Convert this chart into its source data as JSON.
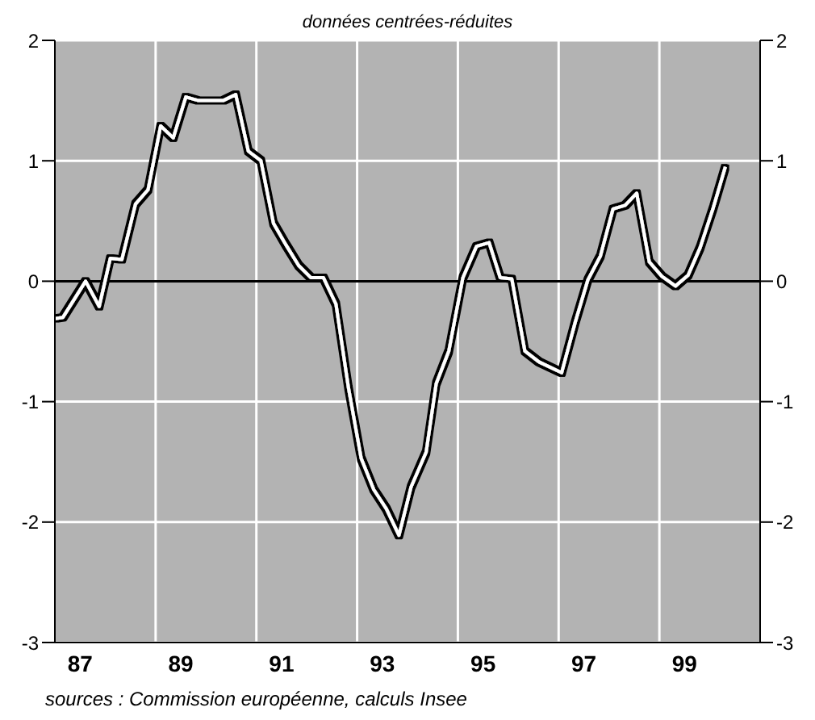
{
  "chart_data": {
    "type": "line",
    "subtitle": "données centrées-réduites",
    "x": [
      86.5,
      86.66,
      87.11,
      87.38,
      87.6,
      87.83,
      88.1,
      88.35,
      88.6,
      88.85,
      89.1,
      89.35,
      89.84,
      90.09,
      90.34,
      90.59,
      90.84,
      91.09,
      91.34,
      91.58,
      91.83,
      92.08,
      92.33,
      92.58,
      92.83,
      93.08,
      93.33,
      93.57,
      93.87,
      94.07,
      94.32,
      94.6,
      94.87,
      95.12,
      95.34,
      95.57,
      95.83,
      96.11,
      96.56,
      96.83,
      97.08,
      97.33,
      97.58,
      97.82,
      98.05,
      98.3,
      98.55,
      98.82,
      99.07,
      99.31,
      99.57,
      99.81
    ],
    "series": [
      {
        "color": "#ffffff",
        "values": [
          -0.31,
          -0.3,
          0,
          -0.21,
          0.19,
          0.18,
          0.64,
          0.76,
          1.29,
          1.19,
          1.53,
          1.5,
          1.5,
          1.55,
          1.08,
          1.0,
          0.48,
          0.3,
          0.13,
          0.03,
          0.03,
          -0.19,
          -0.89,
          -1.47,
          -1.73,
          -1.89,
          -2.11,
          -1.71,
          -1.42,
          -0.85,
          -0.58,
          0.03,
          0.29,
          0.32,
          0.03,
          0.02,
          -0.58,
          -0.67,
          -0.76,
          -0.34,
          0.01,
          0.21,
          0.6,
          0.63,
          0.73,
          0.16,
          0.04,
          -0.04,
          0.05,
          0.28,
          0.61,
          0.95
        ]
      }
    ],
    "xlim": [
      86.5,
      100.5
    ],
    "xticks": [
      87,
      89,
      91,
      93,
      95,
      97,
      99,
      {
        "value": 88.5,
        "label": null
      },
      {
        "value": 90.5,
        "label": null
      },
      {
        "value": 92.5,
        "label": null
      },
      {
        "value": 94.5,
        "label": null
      },
      {
        "value": 96.5,
        "label": null
      },
      {
        "value": 98.5,
        "label": null
      }
    ],
    "ylim": [
      -3,
      2
    ],
    "yticks": [
      -3,
      -2,
      -1,
      0,
      1,
      2
    ],
    "y2lim": [
      -3,
      2
    ],
    "y2ticks": [
      -3,
      -2,
      -1,
      0,
      1,
      2
    ],
    "ref_lines": [
      {
        "axis": "y",
        "value": 0,
        "color": "#000000"
      }
    ],
    "grid": true,
    "marker": "none",
    "line_style": "solid",
    "annotations": [
      "sources : Commission européenne, calculs Insee"
    ]
  }
}
